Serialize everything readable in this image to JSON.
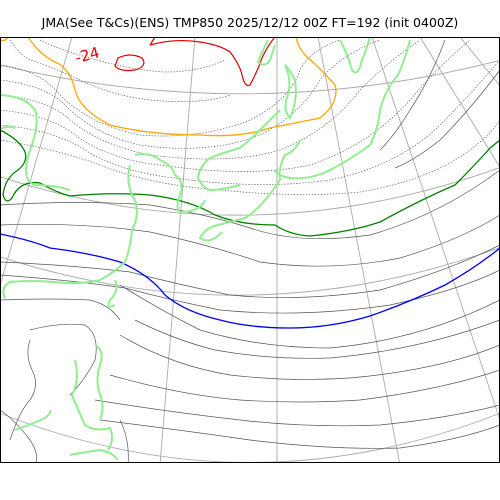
{
  "title": "JMA(See T&Cs)(ENS) TMP850 2025/12/12 00Z FT=192 (init 0400Z)",
  "contour_label": "-24",
  "colors": {
    "coast": "#90ee90",
    "grid": "#aaaaaa",
    "isotherm": "#555555",
    "isotherm_dotted": "#666666",
    "contour_red": "#e00000",
    "contour_orange": "#ffa500",
    "contour_green": "#008000",
    "contour_blue": "#0000ff",
    "frame": "#000000"
  }
}
